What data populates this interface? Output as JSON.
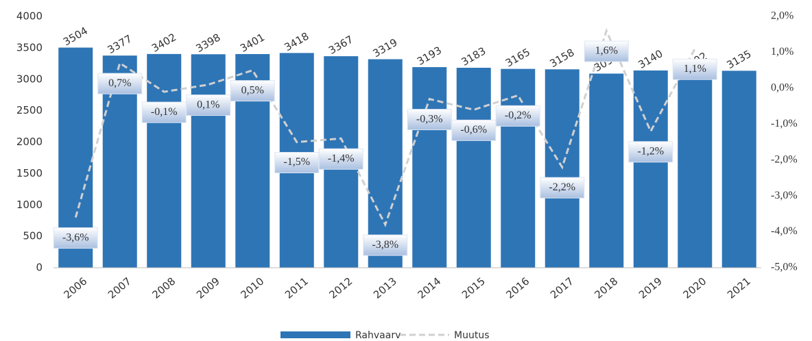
{
  "chart_data": {
    "type": "bar",
    "categories": [
      "2006",
      "2007",
      "2008",
      "2009",
      "2010",
      "2011",
      "2012",
      "2013",
      "2014",
      "2015",
      "2016",
      "2017",
      "2018",
      "2019",
      "2020",
      "2021"
    ],
    "series": [
      {
        "name": "Rahvaarv",
        "color": "#2e75b6",
        "type": "bar",
        "values": [
          3504,
          3377,
          3402,
          3398,
          3401,
          3418,
          3367,
          3319,
          3193,
          3183,
          3165,
          3158,
          3090,
          3140,
          3102,
          3135
        ]
      },
      {
        "name": "Muutus",
        "color": "#d0d0d0",
        "type": "line",
        "axis": "y2",
        "values": [
          -3.6,
          0.7,
          -0.1,
          0.1,
          0.5,
          -1.5,
          -1.4,
          -3.8,
          -0.3,
          -0.6,
          -0.2,
          -2.2,
          1.6,
          -1.2,
          1.1,
          null
        ],
        "value_labels": [
          "-3,6%",
          "0,7%",
          "-0,1%",
          "0,1%",
          "0,5%",
          "-1,5%",
          "-1,4%",
          "-3,8%",
          "-0,3%",
          "-0,6%",
          "-0,2%",
          "-2,2%",
          "1,6%",
          "-1,2%",
          "1,1%",
          null
        ]
      }
    ],
    "ylim": [
      0,
      4000
    ],
    "yticks": [
      0,
      500,
      1000,
      1500,
      2000,
      2500,
      3000,
      3500,
      4000
    ],
    "y2lim": [
      -5,
      2
    ],
    "y2ticks": [
      {
        "value": -5,
        "label": "-5,0%"
      },
      {
        "value": -4,
        "label": "-4,0%"
      },
      {
        "value": -3,
        "label": "-3,0%"
      },
      {
        "value": -2,
        "label": "-2,0%"
      },
      {
        "value": -1,
        "label": "-1,0%"
      },
      {
        "value": 0,
        "label": "0,0%"
      },
      {
        "value": 1,
        "label": "1,0%"
      },
      {
        "value": 2,
        "label": "2,0%"
      }
    ],
    "legend": "bottom"
  }
}
